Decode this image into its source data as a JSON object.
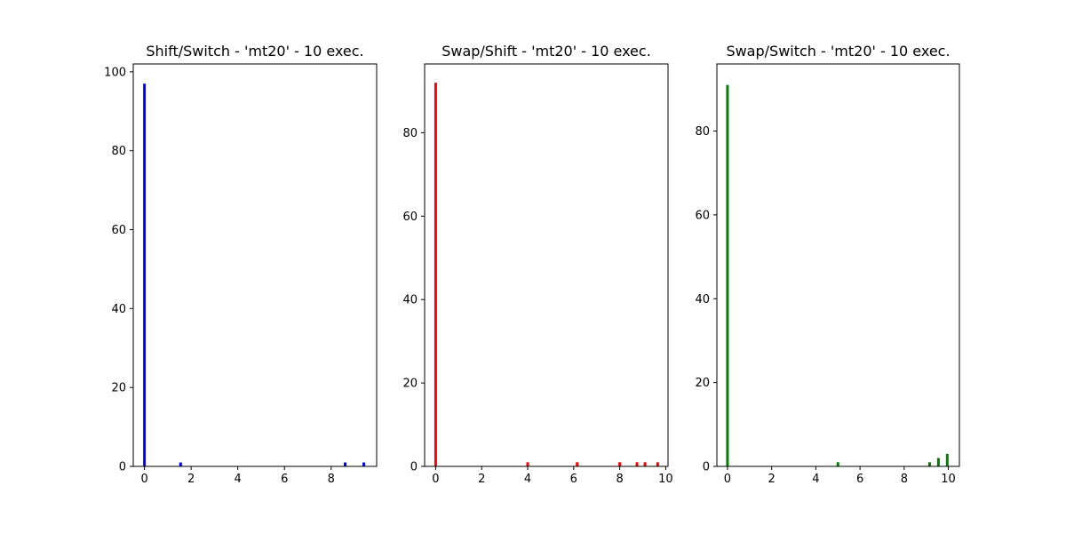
{
  "chart_data": [
    {
      "type": "bar",
      "title": "Shift/Switch - 'mt20' - 10 exec.",
      "color": "#0000ff",
      "xlim": [
        -0.48,
        9.95
      ],
      "ylim": [
        0,
        102
      ],
      "xticks": [
        "0",
        "2",
        "4",
        "6",
        "8"
      ],
      "yticks": [
        "0",
        "20",
        "40",
        "60",
        "80",
        "100"
      ],
      "bars": [
        {
          "x": 0.0,
          "value": 97
        },
        {
          "x": 1.55,
          "value": 1
        },
        {
          "x": 8.6,
          "value": 1
        },
        {
          "x": 9.4,
          "value": 1
        }
      ]
    },
    {
      "type": "bar",
      "title": "Swap/Shift - 'mt20' - 10 exec.",
      "color": "#ff0000",
      "xlim": [
        -0.48,
        10.1
      ],
      "ylim": [
        0,
        96.5
      ],
      "xticks": [
        "0",
        "2",
        "4",
        "6",
        "8",
        "10"
      ],
      "yticks": [
        "0",
        "20",
        "40",
        "60",
        "80"
      ],
      "bars": [
        {
          "x": 0.0,
          "value": 92
        },
        {
          "x": 4.0,
          "value": 1
        },
        {
          "x": 6.15,
          "value": 1
        },
        {
          "x": 8.0,
          "value": 1
        },
        {
          "x": 8.75,
          "value": 1
        },
        {
          "x": 9.1,
          "value": 1
        },
        {
          "x": 9.65,
          "value": 1
        }
      ]
    },
    {
      "type": "bar",
      "title": "Swap/Switch - 'mt20' - 10 exec.",
      "color": "#008000",
      "xlim": [
        -0.48,
        10.5
      ],
      "ylim": [
        0,
        96
      ],
      "xticks": [
        "0",
        "2",
        "4",
        "6",
        "8",
        "10"
      ],
      "yticks": [
        "0",
        "20",
        "40",
        "60",
        "80"
      ],
      "bars": [
        {
          "x": 0.0,
          "value": 91
        },
        {
          "x": 5.0,
          "value": 1
        },
        {
          "x": 9.15,
          "value": 1
        },
        {
          "x": 9.55,
          "value": 2
        },
        {
          "x": 9.95,
          "value": 3
        }
      ]
    }
  ]
}
